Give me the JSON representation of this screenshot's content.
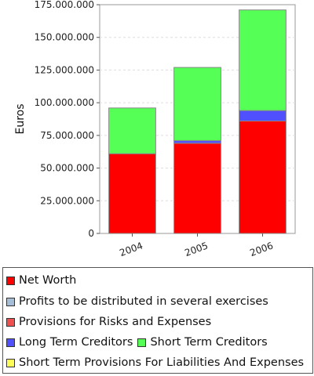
{
  "chart_data": {
    "type": "bar",
    "stacked": true,
    "ylabel": "Euros",
    "categories": [
      "2004",
      "2005",
      "2006"
    ],
    "ylim": [
      0,
      175000000
    ],
    "yticks": [
      0,
      25000000,
      50000000,
      75000000,
      100000000,
      125000000,
      150000000,
      175000000
    ],
    "ytick_labels": [
      "0",
      "25.000.000",
      "50.000.000",
      "75.000.000",
      "100.000.000",
      "125.000.000",
      "150.000.000",
      "175.000.000"
    ],
    "grid": true,
    "legend_position": "bottom",
    "series": [
      {
        "name": "Net Worth",
        "color": "#ff0000",
        "values": [
          61000000,
          69000000,
          86000000
        ]
      },
      {
        "name": "Profits to be distributed in several exercises",
        "color": "#a5bdd6",
        "values": [
          0,
          0,
          0
        ]
      },
      {
        "name": "Provisions for Risks and Expenses",
        "color": "#f05050",
        "values": [
          0,
          0,
          0
        ]
      },
      {
        "name": "Long Term Creditors",
        "color": "#5050ff",
        "values": [
          0,
          2000000,
          8000000
        ]
      },
      {
        "name": "Short Term Creditors",
        "color": "#55ff55",
        "values": [
          35000000,
          56000000,
          77000000
        ]
      },
      {
        "name": "Short Term Provisions For Liabilities And Expenses",
        "color": "#ffff55",
        "values": [
          0,
          0,
          0
        ]
      }
    ]
  }
}
